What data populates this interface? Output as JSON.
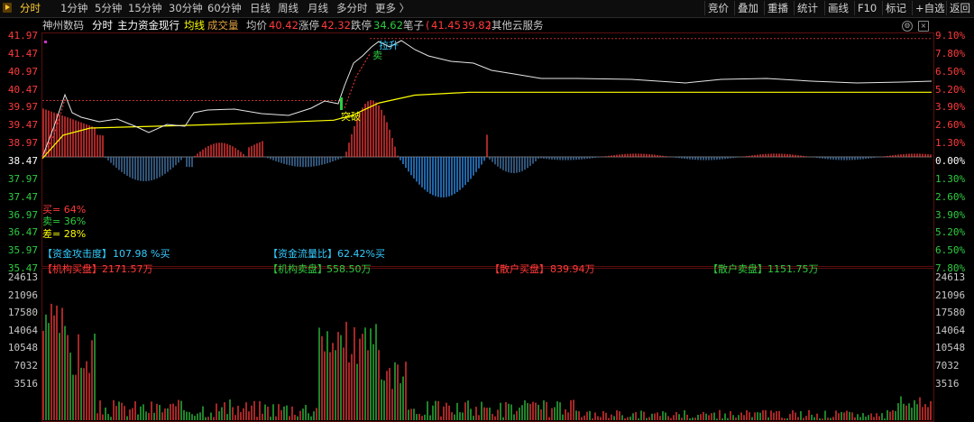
{
  "colors": {
    "up": "#ff3a3a",
    "down": "#2ecc40",
    "avg": "#ffff00",
    "price": "#e6e6e6",
    "neutral": "#ffffff",
    "grid": "#5a0e0e"
  },
  "toolbar": {
    "left_items": [
      "分时",
      "1分钟",
      "5分钟",
      "15分钟",
      "30分钟",
      "60分钟",
      "日线",
      "周线",
      "月线",
      "多分时",
      "更多 〉"
    ],
    "active_index": 0,
    "right_items": [
      "竞价",
      "叠加",
      "重播",
      "统计",
      "画线",
      "F10",
      "标记",
      "+自选",
      "返回"
    ]
  },
  "info": {
    "stock_name": "神州数码",
    "mode": "分时",
    "main_fund": "主力资金现行",
    "avg_line": "均线",
    "volume": "成交量",
    "avg_price_label": "均价",
    "avg_price": "40.42",
    "limit_up_label": "涨停",
    "limit_up": "42.32",
    "limit_down_label": "跌停",
    "limit_down": "34.62",
    "notes_label": "笔子",
    "notes_open": "(",
    "note_hi": "41.45",
    "note_lo": "39.82",
    "notes_close": ")",
    "cloud": "其他云服务",
    "icon_settings": "gear-icon",
    "icon_close": "close-icon"
  },
  "price_axis": {
    "left": [
      "41.97",
      "41.47",
      "40.97",
      "40.47",
      "39.97",
      "39.47",
      "38.97",
      "38.47",
      "37.97",
      "37.47",
      "36.97",
      "36.47",
      "35.97",
      "35.47"
    ],
    "right": [
      "9.10%",
      "7.80%",
      "6.50%",
      "5.20%",
      "3.90%",
      "2.60%",
      "1.30%",
      "0.00%",
      "1.30%",
      "2.60%",
      "3.90%",
      "5.20%",
      "6.50%",
      "7.80%"
    ],
    "prev_close": 38.47,
    "step": 0.5
  },
  "volume_axis": {
    "labels": [
      "24613",
      "21096",
      "17580",
      "14064",
      "10548",
      "7032",
      "3516"
    ],
    "max": 24613
  },
  "ratios": {
    "buy": "买= 64%",
    "sell": "卖= 36%",
    "diff": "差= 28%"
  },
  "signals": {
    "up": "拉升",
    "sell": "卖",
    "break": "突破"
  },
  "stats": {
    "attack_label": "【资金攻击度】",
    "attack_value": "107.98 %买",
    "flow_label": "【资金流量比】",
    "flow_value": "62.42%买",
    "inst_buy_label": "【机构买盘】",
    "inst_buy_value": "2171.57万",
    "inst_sell_label": "【机构卖盘】",
    "inst_sell_value": "558.50万",
    "retail_buy_label": "【散户买盘】",
    "retail_buy_value": "839.94万",
    "retail_sell_label": "【散户卖盘】",
    "retail_sell_value": "1151.75万"
  }
}
